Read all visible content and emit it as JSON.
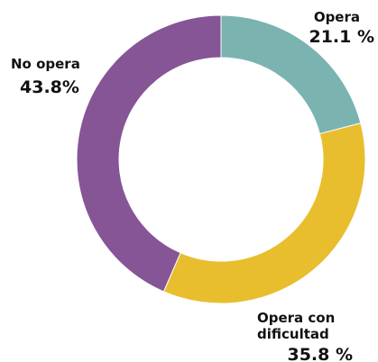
{
  "chart_data": {
    "type": "donut",
    "categories": [
      "Opera",
      "Opera con dificultad",
      "No opera"
    ],
    "values": [
      21.1,
      35.8,
      43.8
    ],
    "value_labels": [
      "21.1 %",
      "35.8 %",
      "43.8%"
    ],
    "colors": [
      "#7ab3b0",
      "#e8be2e",
      "#855595"
    ]
  }
}
